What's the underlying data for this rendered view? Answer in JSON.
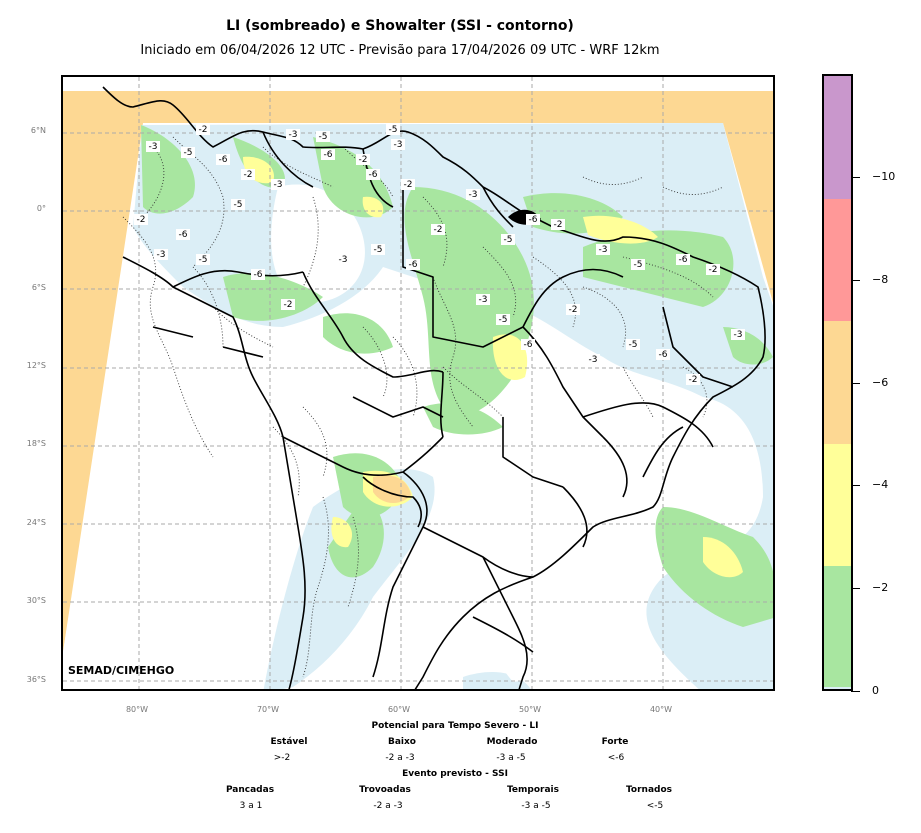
{
  "header": {
    "title": "LI (sombreado) e Showalter (SSI - contorno)",
    "subtitle": "Iniciado em 06/04/2026 12 UTC - Previsão para 17/04/2026 09 UTC - WRF 12km"
  },
  "map": {
    "credit": "SEMAD/CIMEHGO",
    "lat_labels": [
      "6°N",
      "0°",
      "6°S",
      "12°S",
      "18°S",
      "24°S",
      "30°S",
      "36°S"
    ],
    "lon_labels": [
      "80°W",
      "70°W",
      "60°W",
      "50°W",
      "40°W"
    ],
    "colors": {
      "class_0_2": "#dbeef6",
      "class_2_4": "#a8e6a0",
      "class_4_6": "#ffff99",
      "class_6_8": "#fdd893",
      "class_8_10": "#ff9898",
      "class_10plus": "#c997cc"
    },
    "contour_labels": [
      "-2",
      "-3",
      "-5",
      "-6",
      "-2",
      "-3",
      "-5",
      "-6",
      "-2",
      "-3",
      "-5",
      "-6",
      "-2",
      "-3",
      "-5",
      "-6",
      "-2",
      "-3",
      "-5",
      "-6",
      "-2",
      "-3",
      "-5",
      "-6",
      "-2",
      "-3",
      "-5",
      "-6",
      "-2",
      "-3",
      "-5",
      "-6",
      "-2",
      "-3",
      "-5",
      "-6",
      "-2",
      "-3",
      "-5",
      "-6"
    ]
  },
  "colorbar": {
    "ticks": [
      "0",
      "−2",
      "−4",
      "−6",
      "−8",
      "−10"
    ],
    "colors": [
      "#dbeef6",
      "#a8e6a0",
      "#ffff99",
      "#fdd893",
      "#ff9898",
      "#c997cc"
    ]
  },
  "legend": {
    "li_title": "Potencial para Tempo Severo - LI",
    "li_classes": [
      {
        "name": "Estável",
        "range": ">-2"
      },
      {
        "name": "Baixo",
        "range": "-2 a -3"
      },
      {
        "name": "Moderado",
        "range": "-3 a -5"
      },
      {
        "name": "Forte",
        "range": "<-6"
      }
    ],
    "ssi_title": "Evento previsto - SSI",
    "ssi_classes": [
      {
        "name": "Pancadas",
        "range": "3 a 1"
      },
      {
        "name": "Trovoadas",
        "range": "-2 a -3"
      },
      {
        "name": "Temporais",
        "range": "-3 a -5"
      },
      {
        "name": "Tornados",
        "range": "<-5"
      }
    ]
  }
}
